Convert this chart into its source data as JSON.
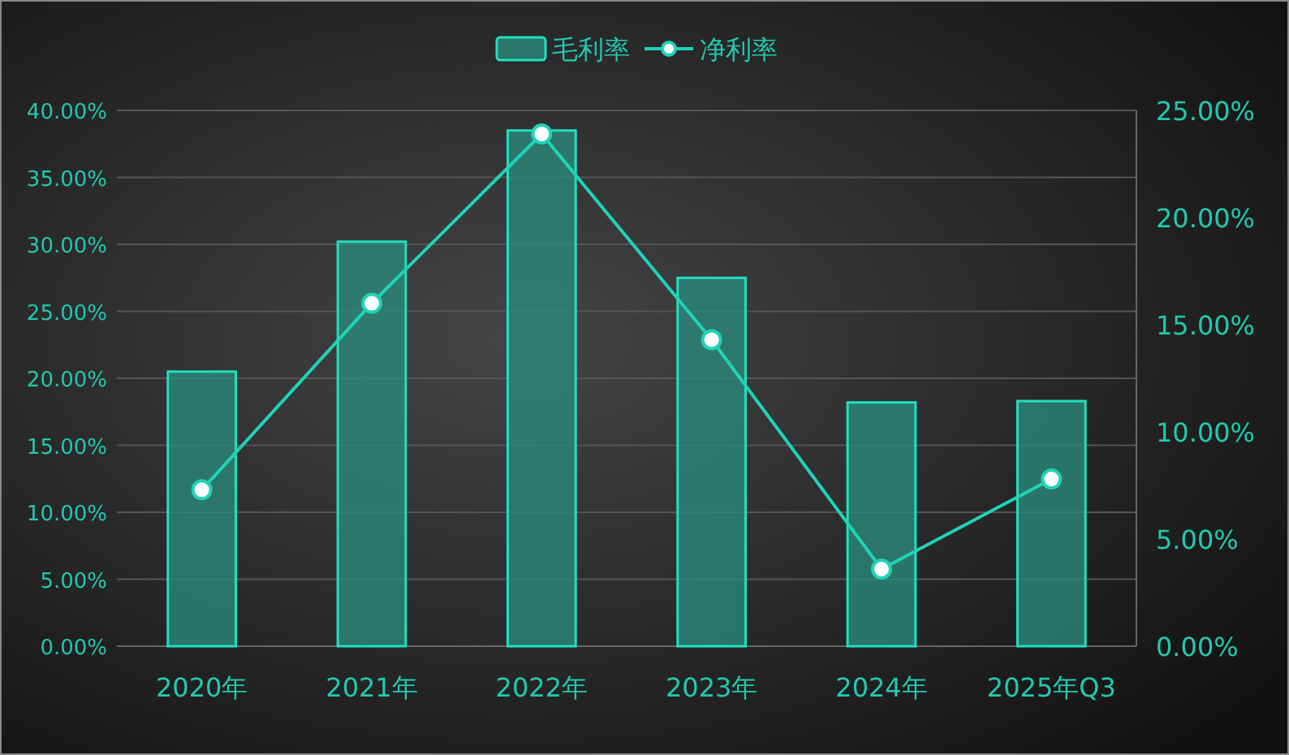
{
  "chart_data": {
    "type": "bar",
    "categories": [
      "2020年",
      "2021年",
      "2022年",
      "2023年",
      "2024年",
      "2025年Q3"
    ],
    "series": [
      {
        "name": "毛利率",
        "color": "#2a8a7c",
        "values": [
          20.5,
          30.2,
          38.5,
          27.5,
          18.2,
          18.3
        ]
      },
      {
        "name": "净利率",
        "type": "line",
        "axis": "y2",
        "color": "#20d3b7",
        "values": [
          7.3,
          16.0,
          23.9,
          14.3,
          3.6,
          7.8
        ]
      }
    ],
    "ylim": [
      0,
      40
    ],
    "yticks": [
      {
        "value": 0,
        "label": "0.00%"
      },
      {
        "value": 5,
        "label": "5.00%"
      },
      {
        "value": 10,
        "label": "10.00%"
      },
      {
        "value": 15,
        "label": "15.00%"
      },
      {
        "value": 20,
        "label": "20.00%"
      },
      {
        "value": 25,
        "label": "25.00%"
      },
      {
        "value": 30,
        "label": "30.00%"
      },
      {
        "value": 35,
        "label": "35.00%"
      },
      {
        "value": 40,
        "label": "40.00%"
      }
    ],
    "y2lim": [
      0,
      25
    ],
    "y2ticks": [
      {
        "value": 0,
        "label": "0.00%"
      },
      {
        "value": 5,
        "label": "5.00%"
      },
      {
        "value": 10,
        "label": "10.00%"
      },
      {
        "value": 15,
        "label": "15.00%"
      },
      {
        "value": 20,
        "label": "20.00%"
      },
      {
        "value": 25,
        "label": "25.00%"
      }
    ],
    "grid": "y",
    "legend": "top",
    "marker": "circle"
  }
}
